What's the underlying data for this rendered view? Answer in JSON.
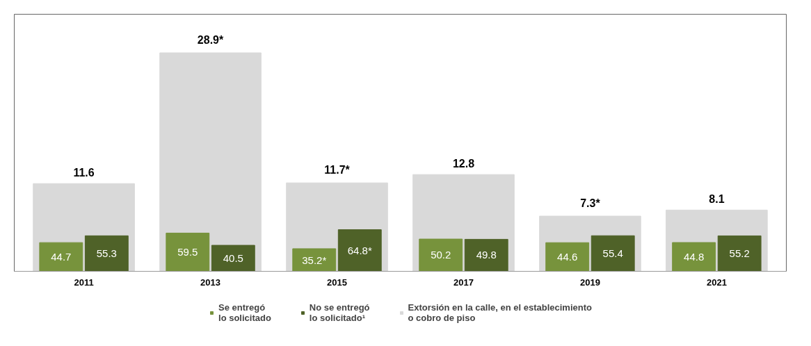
{
  "chart_data": {
    "type": "bar",
    "categories": [
      "2011",
      "2013",
      "2015",
      "2017",
      "2019",
      "2021"
    ],
    "series": [
      {
        "name": "Extorsión en la calle, en el establecimiento\no cobro de piso",
        "color": "#d9d9d9",
        "axis": "y",
        "values": [
          11.6,
          28.9,
          11.7,
          12.8,
          7.3,
          8.1
        ],
        "value_labels": [
          "11.6",
          "28.9*",
          "11.7*",
          "12.8",
          "7.3*",
          "8.1"
        ]
      },
      {
        "name": "Se entregó\nlo solicitado",
        "color": "#77933c",
        "axis": "y2",
        "values": [
          44.7,
          59.5,
          35.2,
          50.2,
          44.6,
          44.8
        ],
        "value_labels": [
          "44.7",
          "59.5",
          "35.2*",
          "50.2",
          "44.6",
          "44.8"
        ]
      },
      {
        "name": "No se entregó\nlo solicitado¹",
        "color": "#4f6228",
        "axis": "y2",
        "values": [
          55.3,
          40.5,
          64.8,
          49.8,
          55.4,
          55.2
        ],
        "value_labels": [
          "55.3",
          "40.5",
          "64.8*",
          "49.8",
          "55.4",
          "55.2"
        ]
      }
    ],
    "ylim": [
      0,
      34
    ],
    "y2lim": [
      0,
      400
    ],
    "tick_labels": "x",
    "grid": false,
    "legend": "bottom"
  }
}
